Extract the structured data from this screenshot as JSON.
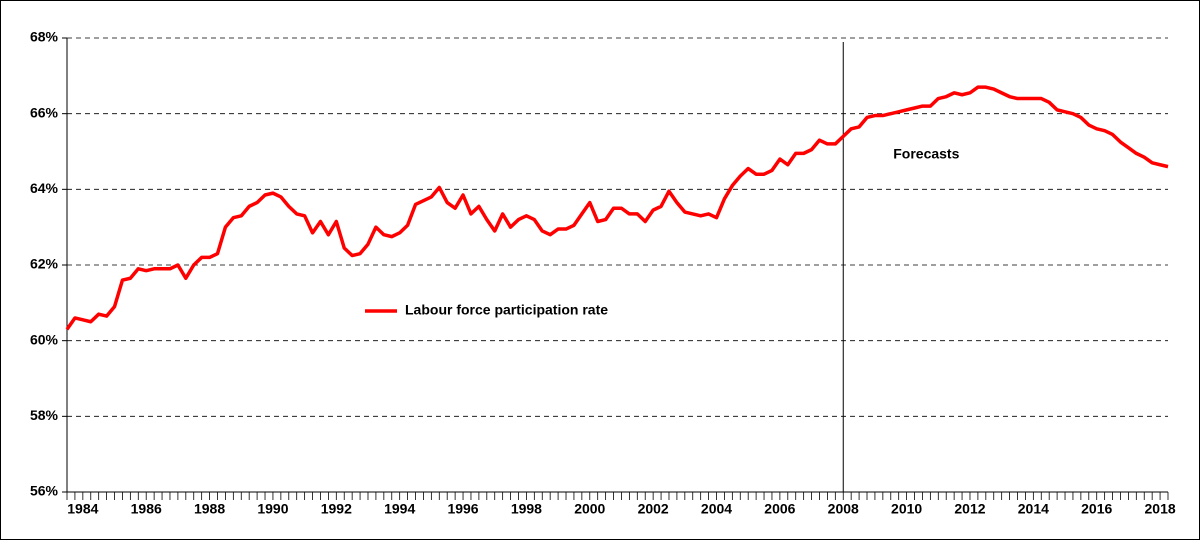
{
  "chart_data": {
    "type": "line",
    "x": [
      1983.5,
      1983.75,
      1984,
      1984.25,
      1984.5,
      1984.75,
      1985,
      1985.25,
      1985.5,
      1985.75,
      1986,
      1986.25,
      1986.5,
      1986.75,
      1987,
      1987.25,
      1987.5,
      1987.75,
      1988,
      1988.25,
      1988.5,
      1988.75,
      1989,
      1989.25,
      1989.5,
      1989.75,
      1990,
      1990.25,
      1990.5,
      1990.75,
      1991,
      1991.25,
      1991.5,
      1991.75,
      1992,
      1992.25,
      1992.5,
      1992.75,
      1993,
      1993.25,
      1993.5,
      1993.75,
      1994,
      1994.25,
      1994.5,
      1994.75,
      1995,
      1995.25,
      1995.5,
      1995.75,
      1996,
      1996.25,
      1996.5,
      1996.75,
      1997,
      1997.25,
      1997.5,
      1997.75,
      1998,
      1998.25,
      1998.5,
      1998.75,
      1999,
      1999.25,
      1999.5,
      1999.75,
      2000,
      2000.25,
      2000.5,
      2000.75,
      2001,
      2001.25,
      2001.5,
      2001.75,
      2002,
      2002.25,
      2002.5,
      2002.75,
      2003,
      2003.25,
      2003.5,
      2003.75,
      2004,
      2004.25,
      2004.5,
      2004.75,
      2005,
      2005.25,
      2005.5,
      2005.75,
      2006,
      2006.25,
      2006.5,
      2006.75,
      2007,
      2007.25,
      2007.5,
      2007.75,
      2008,
      2008.25,
      2008.5,
      2008.75,
      2009,
      2009.25,
      2009.5,
      2009.75,
      2010,
      2010.25,
      2010.5,
      2010.75,
      2011,
      2011.25,
      2011.5,
      2011.75,
      2012,
      2012.25,
      2012.5,
      2012.75,
      2013,
      2013.25,
      2013.5,
      2013.75,
      2014,
      2014.25,
      2014.5,
      2014.75,
      2015,
      2015.25,
      2015.5,
      2015.75,
      2016,
      2016.25,
      2016.5,
      2016.75,
      2017,
      2017.25,
      2017.5,
      2017.75,
      2018,
      2018.25
    ],
    "series": [
      {
        "name": "Labour force participation rate",
        "color": "#ff0000",
        "values": [
          60.3,
          60.6,
          60.55,
          60.5,
          60.7,
          60.65,
          60.9,
          61.6,
          61.65,
          61.9,
          61.85,
          61.9,
          61.9,
          61.9,
          62.0,
          61.65,
          62.0,
          62.2,
          62.2,
          62.3,
          63.0,
          63.25,
          63.3,
          63.55,
          63.65,
          63.85,
          63.9,
          63.8,
          63.55,
          63.35,
          63.3,
          62.85,
          63.15,
          62.8,
          63.15,
          62.45,
          62.25,
          62.3,
          62.55,
          63.0,
          62.8,
          62.75,
          62.85,
          63.05,
          63.6,
          63.7,
          63.8,
          64.05,
          63.65,
          63.5,
          63.85,
          63.35,
          63.55,
          63.2,
          62.9,
          63.35,
          63.0,
          63.2,
          63.3,
          63.2,
          62.9,
          62.8,
          62.95,
          62.95,
          63.05,
          63.35,
          63.65,
          63.15,
          63.2,
          63.5,
          63.5,
          63.35,
          63.35,
          63.15,
          63.45,
          63.55,
          63.95,
          63.65,
          63.4,
          63.35,
          63.3,
          63.35,
          63.25,
          63.75,
          64.1,
          64.35,
          64.55,
          64.4,
          64.4,
          64.5,
          64.8,
          64.65,
          64.95,
          64.95,
          65.05,
          65.3,
          65.2,
          65.2,
          65.4,
          65.6,
          65.65,
          65.9,
          65.95,
          65.95,
          66.0,
          66.05,
          66.1,
          66.15,
          66.2,
          66.2,
          66.4,
          66.45,
          66.55,
          66.5,
          66.55,
          66.7,
          66.7,
          66.65,
          66.55,
          66.45,
          66.4,
          66.4,
          66.4,
          66.4,
          66.3,
          66.1,
          66.05,
          66.0,
          65.9,
          65.7,
          65.6,
          65.55,
          65.45,
          65.25,
          65.1,
          64.95,
          64.85,
          64.7,
          64.65,
          64.6
        ]
      }
    ],
    "xlim": [
      1983.5,
      2018.25
    ],
    "xticks": [
      1984,
      1986,
      1988,
      1990,
      1992,
      1994,
      1996,
      1998,
      2000,
      2002,
      2004,
      2006,
      2008,
      2010,
      2012,
      2014,
      2016,
      2018
    ],
    "ylim": [
      56,
      68
    ],
    "yticks": [
      {
        "value": 56,
        "label": "56%"
      },
      {
        "value": 58,
        "label": "58%"
      },
      {
        "value": 60,
        "label": "60%"
      },
      {
        "value": 62,
        "label": "62%"
      },
      {
        "value": 64,
        "label": "64%"
      },
      {
        "value": 66,
        "label": "66%"
      },
      {
        "value": 68,
        "label": "68%"
      }
    ],
    "grid": true,
    "annotations": [
      {
        "text": "Forecasts",
        "x": 2008
      }
    ]
  }
}
